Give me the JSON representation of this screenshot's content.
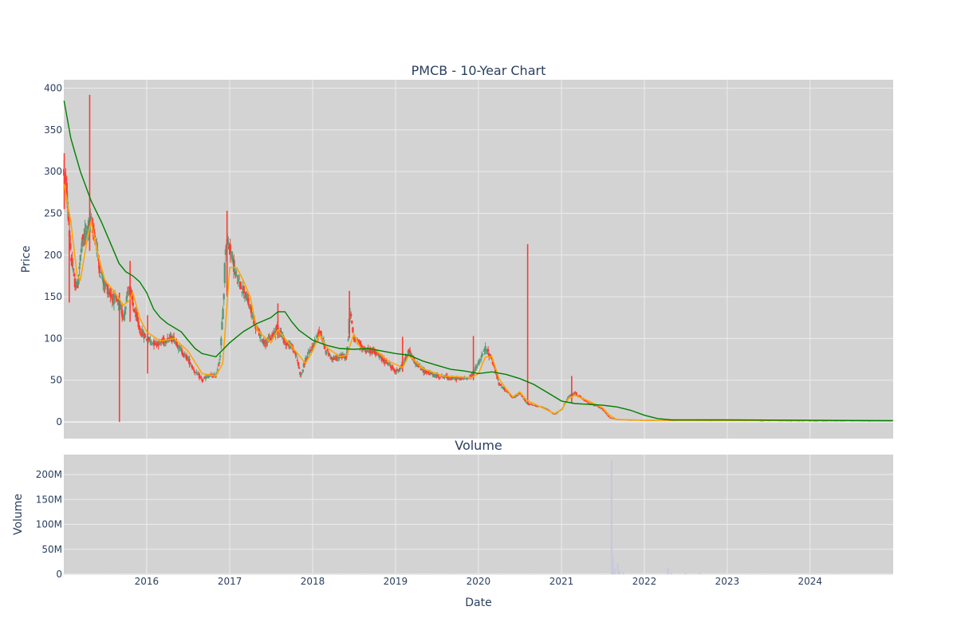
{
  "colors": {
    "plot_bg": "#d3d3d3",
    "grid": "#ececec",
    "increasing": "#5a9a7a",
    "decreasing": "#ff3b30",
    "ma_short": "#ffa500",
    "ma_long": "#008000",
    "volume_bar": "#c8c8e0",
    "text": "#2a3f5f"
  },
  "chart_data": [
    {
      "type": "candlestick",
      "title": "PMCB - 10-Year Chart",
      "ylabel": "Price",
      "ylim": [
        -20,
        410
      ],
      "yticks": [
        0,
        50,
        100,
        150,
        200,
        250,
        300,
        350,
        400
      ],
      "xlim": [
        "2015-01-01",
        "2025-01-01"
      ],
      "xticks": [
        "2016-01-01",
        "2017-01-01",
        "2018-01-01",
        "2019-01-01",
        "2020-01-01",
        "2021-01-01",
        "2022-01-01",
        "2023-01-01",
        "2024-01-01"
      ],
      "xtick_labels": [
        "2016",
        "2017",
        "2018",
        "2019",
        "2020",
        "2021",
        "2022",
        "2023",
        "2024"
      ],
      "grid": true,
      "price_keypoints": [
        [
          "2015-01-02",
          300
        ],
        [
          "2015-01-15",
          270
        ],
        [
          "2015-02-01",
          200
        ],
        [
          "2015-02-15",
          170
        ],
        [
          "2015-03-01",
          160
        ],
        [
          "2015-03-20",
          210
        ],
        [
          "2015-04-10",
          230
        ],
        [
          "2015-05-01",
          240
        ],
        [
          "2015-05-20",
          220
        ],
        [
          "2015-06-10",
          180
        ],
        [
          "2015-07-01",
          165
        ],
        [
          "2015-08-01",
          150
        ],
        [
          "2015-09-01",
          140
        ],
        [
          "2015-09-20",
          125
        ],
        [
          "2015-10-15",
          165
        ],
        [
          "2015-11-01",
          140
        ],
        [
          "2015-12-01",
          110
        ],
        [
          "2016-01-01",
          100
        ],
        [
          "2016-02-01",
          95
        ],
        [
          "2016-03-01",
          95
        ],
        [
          "2016-04-01",
          100
        ],
        [
          "2016-05-01",
          100
        ],
        [
          "2016-06-01",
          85
        ],
        [
          "2016-07-01",
          75
        ],
        [
          "2016-08-01",
          60
        ],
        [
          "2016-09-01",
          50
        ],
        [
          "2016-10-01",
          55
        ],
        [
          "2016-11-01",
          55
        ],
        [
          "2016-11-20",
          80
        ],
        [
          "2016-12-05",
          150
        ],
        [
          "2016-12-15",
          220
        ],
        [
          "2017-01-01",
          210
        ],
        [
          "2017-02-01",
          170
        ],
        [
          "2017-03-01",
          160
        ],
        [
          "2017-04-01",
          135
        ],
        [
          "2017-05-01",
          110
        ],
        [
          "2017-06-01",
          95
        ],
        [
          "2017-07-01",
          100
        ],
        [
          "2017-08-01",
          115
        ],
        [
          "2017-09-01",
          95
        ],
        [
          "2017-10-01",
          90
        ],
        [
          "2017-10-20",
          80
        ],
        [
          "2017-11-10",
          55
        ],
        [
          "2017-12-01",
          75
        ],
        [
          "2018-01-01",
          90
        ],
        [
          "2018-02-01",
          110
        ],
        [
          "2018-03-01",
          85
        ],
        [
          "2018-04-01",
          75
        ],
        [
          "2018-05-01",
          78
        ],
        [
          "2018-06-01",
          80
        ],
        [
          "2018-06-15",
          135
        ],
        [
          "2018-07-01",
          100
        ],
        [
          "2018-08-01",
          90
        ],
        [
          "2018-09-01",
          85
        ],
        [
          "2018-10-01",
          85
        ],
        [
          "2018-11-01",
          75
        ],
        [
          "2018-12-01",
          70
        ],
        [
          "2019-01-01",
          60
        ],
        [
          "2019-02-01",
          68
        ],
        [
          "2019-03-01",
          85
        ],
        [
          "2019-04-01",
          70
        ],
        [
          "2019-05-01",
          62
        ],
        [
          "2019-06-01",
          58
        ],
        [
          "2019-07-01",
          55
        ],
        [
          "2019-08-01",
          55
        ],
        [
          "2019-09-01",
          52
        ],
        [
          "2019-10-01",
          52
        ],
        [
          "2019-11-01",
          52
        ],
        [
          "2019-12-01",
          55
        ],
        [
          "2020-01-01",
          70
        ],
        [
          "2020-02-01",
          88
        ],
        [
          "2020-03-01",
          75
        ],
        [
          "2020-04-01",
          45
        ],
        [
          "2020-05-01",
          38
        ],
        [
          "2020-06-01",
          28
        ],
        [
          "2020-07-01",
          35
        ],
        [
          "2020-08-01",
          22
        ],
        [
          "2020-09-01",
          20
        ],
        [
          "2020-10-01",
          18
        ],
        [
          "2020-11-01",
          15
        ],
        [
          "2020-12-01",
          9
        ],
        [
          "2021-01-01",
          15
        ],
        [
          "2021-02-01",
          30
        ],
        [
          "2021-03-01",
          35
        ],
        [
          "2021-04-01",
          28
        ],
        [
          "2021-05-01",
          22
        ],
        [
          "2021-06-01",
          20
        ],
        [
          "2021-07-01",
          15
        ],
        [
          "2021-08-01",
          5
        ],
        [
          "2021-09-01",
          3
        ],
        [
          "2021-11-01",
          2.5
        ],
        [
          "2022-01-01",
          2
        ],
        [
          "2022-06-01",
          2
        ],
        [
          "2023-01-01",
          2
        ],
        [
          "2024-01-01",
          1.5
        ],
        [
          "2024-12-31",
          1.5
        ]
      ],
      "ma_short_keypoints": [
        [
          "2015-01-02",
          285
        ],
        [
          "2015-02-01",
          240
        ],
        [
          "2015-03-01",
          175
        ],
        [
          "2015-03-15",
          170
        ],
        [
          "2015-04-15",
          220
        ],
        [
          "2015-05-01",
          240
        ],
        [
          "2015-06-01",
          200
        ],
        [
          "2015-07-01",
          170
        ],
        [
          "2015-08-15",
          155
        ],
        [
          "2015-09-20",
          140
        ],
        [
          "2015-10-15",
          145
        ],
        [
          "2015-11-01",
          155
        ],
        [
          "2015-12-01",
          125
        ],
        [
          "2016-01-01",
          108
        ],
        [
          "2016-03-01",
          97
        ],
        [
          "2016-05-01",
          100
        ],
        [
          "2016-07-01",
          85
        ],
        [
          "2016-09-01",
          58
        ],
        [
          "2016-11-01",
          55
        ],
        [
          "2016-12-01",
          70
        ],
        [
          "2017-01-01",
          185
        ],
        [
          "2017-02-01",
          185
        ],
        [
          "2017-03-01",
          170
        ],
        [
          "2017-04-01",
          150
        ],
        [
          "2017-05-01",
          110
        ],
        [
          "2017-07-01",
          95
        ],
        [
          "2017-08-01",
          110
        ],
        [
          "2017-09-01",
          100
        ],
        [
          "2017-11-01",
          80
        ],
        [
          "2017-12-01",
          70
        ],
        [
          "2018-01-01",
          85
        ],
        [
          "2018-02-01",
          105
        ],
        [
          "2018-03-01",
          90
        ],
        [
          "2018-05-01",
          78
        ],
        [
          "2018-06-01",
          80
        ],
        [
          "2018-07-01",
          105
        ],
        [
          "2018-08-01",
          88
        ],
        [
          "2018-10-01",
          87
        ],
        [
          "2018-12-01",
          73
        ],
        [
          "2019-02-01",
          65
        ],
        [
          "2019-03-01",
          80
        ],
        [
          "2019-05-01",
          64
        ],
        [
          "2019-08-01",
          55
        ],
        [
          "2019-12-01",
          53
        ],
        [
          "2020-01-01",
          58
        ],
        [
          "2020-02-01",
          78
        ],
        [
          "2020-03-01",
          78
        ],
        [
          "2020-04-01",
          52
        ],
        [
          "2020-05-01",
          40
        ],
        [
          "2020-06-01",
          30
        ],
        [
          "2020-07-01",
          36
        ],
        [
          "2020-08-01",
          26
        ],
        [
          "2020-10-01",
          18
        ],
        [
          "2020-12-01",
          10
        ],
        [
          "2021-01-01",
          15
        ],
        [
          "2021-02-01",
          28
        ],
        [
          "2021-03-01",
          32
        ],
        [
          "2021-05-01",
          25
        ],
        [
          "2021-07-01",
          17
        ],
        [
          "2021-08-01",
          8
        ],
        [
          "2021-09-01",
          3
        ],
        [
          "2022-01-01",
          2
        ],
        [
          "2024-12-31",
          1.5
        ]
      ],
      "ma_long_keypoints": [
        [
          "2015-01-02",
          385
        ],
        [
          "2015-02-01",
          340
        ],
        [
          "2015-03-15",
          300
        ],
        [
          "2015-05-01",
          265
        ],
        [
          "2015-06-15",
          240
        ],
        [
          "2015-08-01",
          210
        ],
        [
          "2015-09-01",
          190
        ],
        [
          "2015-10-01",
          180
        ],
        [
          "2015-11-01",
          175
        ],
        [
          "2015-12-01",
          168
        ],
        [
          "2016-01-01",
          155
        ],
        [
          "2016-02-01",
          135
        ],
        [
          "2016-03-01",
          125
        ],
        [
          "2016-04-01",
          118
        ],
        [
          "2016-06-01",
          108
        ],
        [
          "2016-07-01",
          98
        ],
        [
          "2016-08-01",
          88
        ],
        [
          "2016-09-01",
          82
        ],
        [
          "2016-11-01",
          78
        ],
        [
          "2017-01-01",
          95
        ],
        [
          "2017-03-01",
          108
        ],
        [
          "2017-05-01",
          118
        ],
        [
          "2017-07-01",
          125
        ],
        [
          "2017-08-01",
          132
        ],
        [
          "2017-09-01",
          132
        ],
        [
          "2017-10-01",
          120
        ],
        [
          "2017-11-01",
          110
        ],
        [
          "2018-01-01",
          98
        ],
        [
          "2018-03-01",
          92
        ],
        [
          "2018-05-01",
          88
        ],
        [
          "2018-07-01",
          87
        ],
        [
          "2018-09-01",
          88
        ],
        [
          "2018-11-01",
          85
        ],
        [
          "2019-01-01",
          82
        ],
        [
          "2019-03-01",
          80
        ],
        [
          "2019-05-01",
          73
        ],
        [
          "2019-07-01",
          68
        ],
        [
          "2019-09-01",
          63
        ],
        [
          "2019-11-01",
          61
        ],
        [
          "2020-01-01",
          58
        ],
        [
          "2020-03-01",
          60
        ],
        [
          "2020-05-01",
          57
        ],
        [
          "2020-07-01",
          52
        ],
        [
          "2020-09-01",
          45
        ],
        [
          "2020-11-01",
          35
        ],
        [
          "2021-01-01",
          25
        ],
        [
          "2021-03-01",
          22
        ],
        [
          "2021-05-01",
          21
        ],
        [
          "2021-07-01",
          20
        ],
        [
          "2021-09-01",
          18
        ],
        [
          "2021-11-01",
          14
        ],
        [
          "2022-01-01",
          8
        ],
        [
          "2022-03-01",
          4
        ],
        [
          "2022-05-01",
          2.5
        ],
        [
          "2023-01-01",
          2.5
        ],
        [
          "2024-12-31",
          1.5
        ]
      ],
      "spikes": [
        {
          "date": "2015-01-03",
          "high": 322,
          "low": 255
        },
        {
          "date": "2015-01-25",
          "high": 230,
          "low": 143
        },
        {
          "date": "2015-04-25",
          "high": 392,
          "low": 205
        },
        {
          "date": "2015-09-03",
          "high": 155,
          "low": 0
        },
        {
          "date": "2015-10-20",
          "high": 193,
          "low": 120
        },
        {
          "date": "2016-01-05",
          "high": 128,
          "low": 58
        },
        {
          "date": "2016-12-20",
          "high": 253,
          "low": 150
        },
        {
          "date": "2017-08-01",
          "high": 142,
          "low": 100
        },
        {
          "date": "2018-06-12",
          "high": 157,
          "low": 100
        },
        {
          "date": "2019-02-01",
          "high": 102,
          "low": 60
        },
        {
          "date": "2019-12-10",
          "high": 103,
          "low": 50
        },
        {
          "date": "2020-08-05",
          "high": 213,
          "low": 22
        },
        {
          "date": "2021-02-15",
          "high": 55,
          "low": 22
        }
      ]
    },
    {
      "type": "bar",
      "title": "Volume",
      "xlabel": "Date",
      "ylabel": "Volume",
      "ylim": [
        0,
        240000000
      ],
      "yticks": [
        0,
        50000000,
        100000000,
        150000000,
        200000000
      ],
      "ytick_labels": [
        "0",
        "50M",
        "100M",
        "150M",
        "200M"
      ],
      "base_volume": 400000,
      "spikes": [
        {
          "date": "2021-08-10",
          "value": 228000000
        },
        {
          "date": "2021-08-14",
          "value": 40000000
        },
        {
          "date": "2021-08-17",
          "value": 25000000
        },
        {
          "date": "2021-08-25",
          "value": 12000000
        },
        {
          "date": "2021-09-06",
          "value": 22000000
        },
        {
          "date": "2021-09-15",
          "value": 8000000
        },
        {
          "date": "2021-10-01",
          "value": 4000000
        },
        {
          "date": "2022-04-15",
          "value": 14000000
        },
        {
          "date": "2022-05-01",
          "value": 3000000
        },
        {
          "date": "2022-07-01",
          "value": 2500000
        },
        {
          "date": "2022-09-01",
          "value": 2000000
        }
      ]
    }
  ]
}
